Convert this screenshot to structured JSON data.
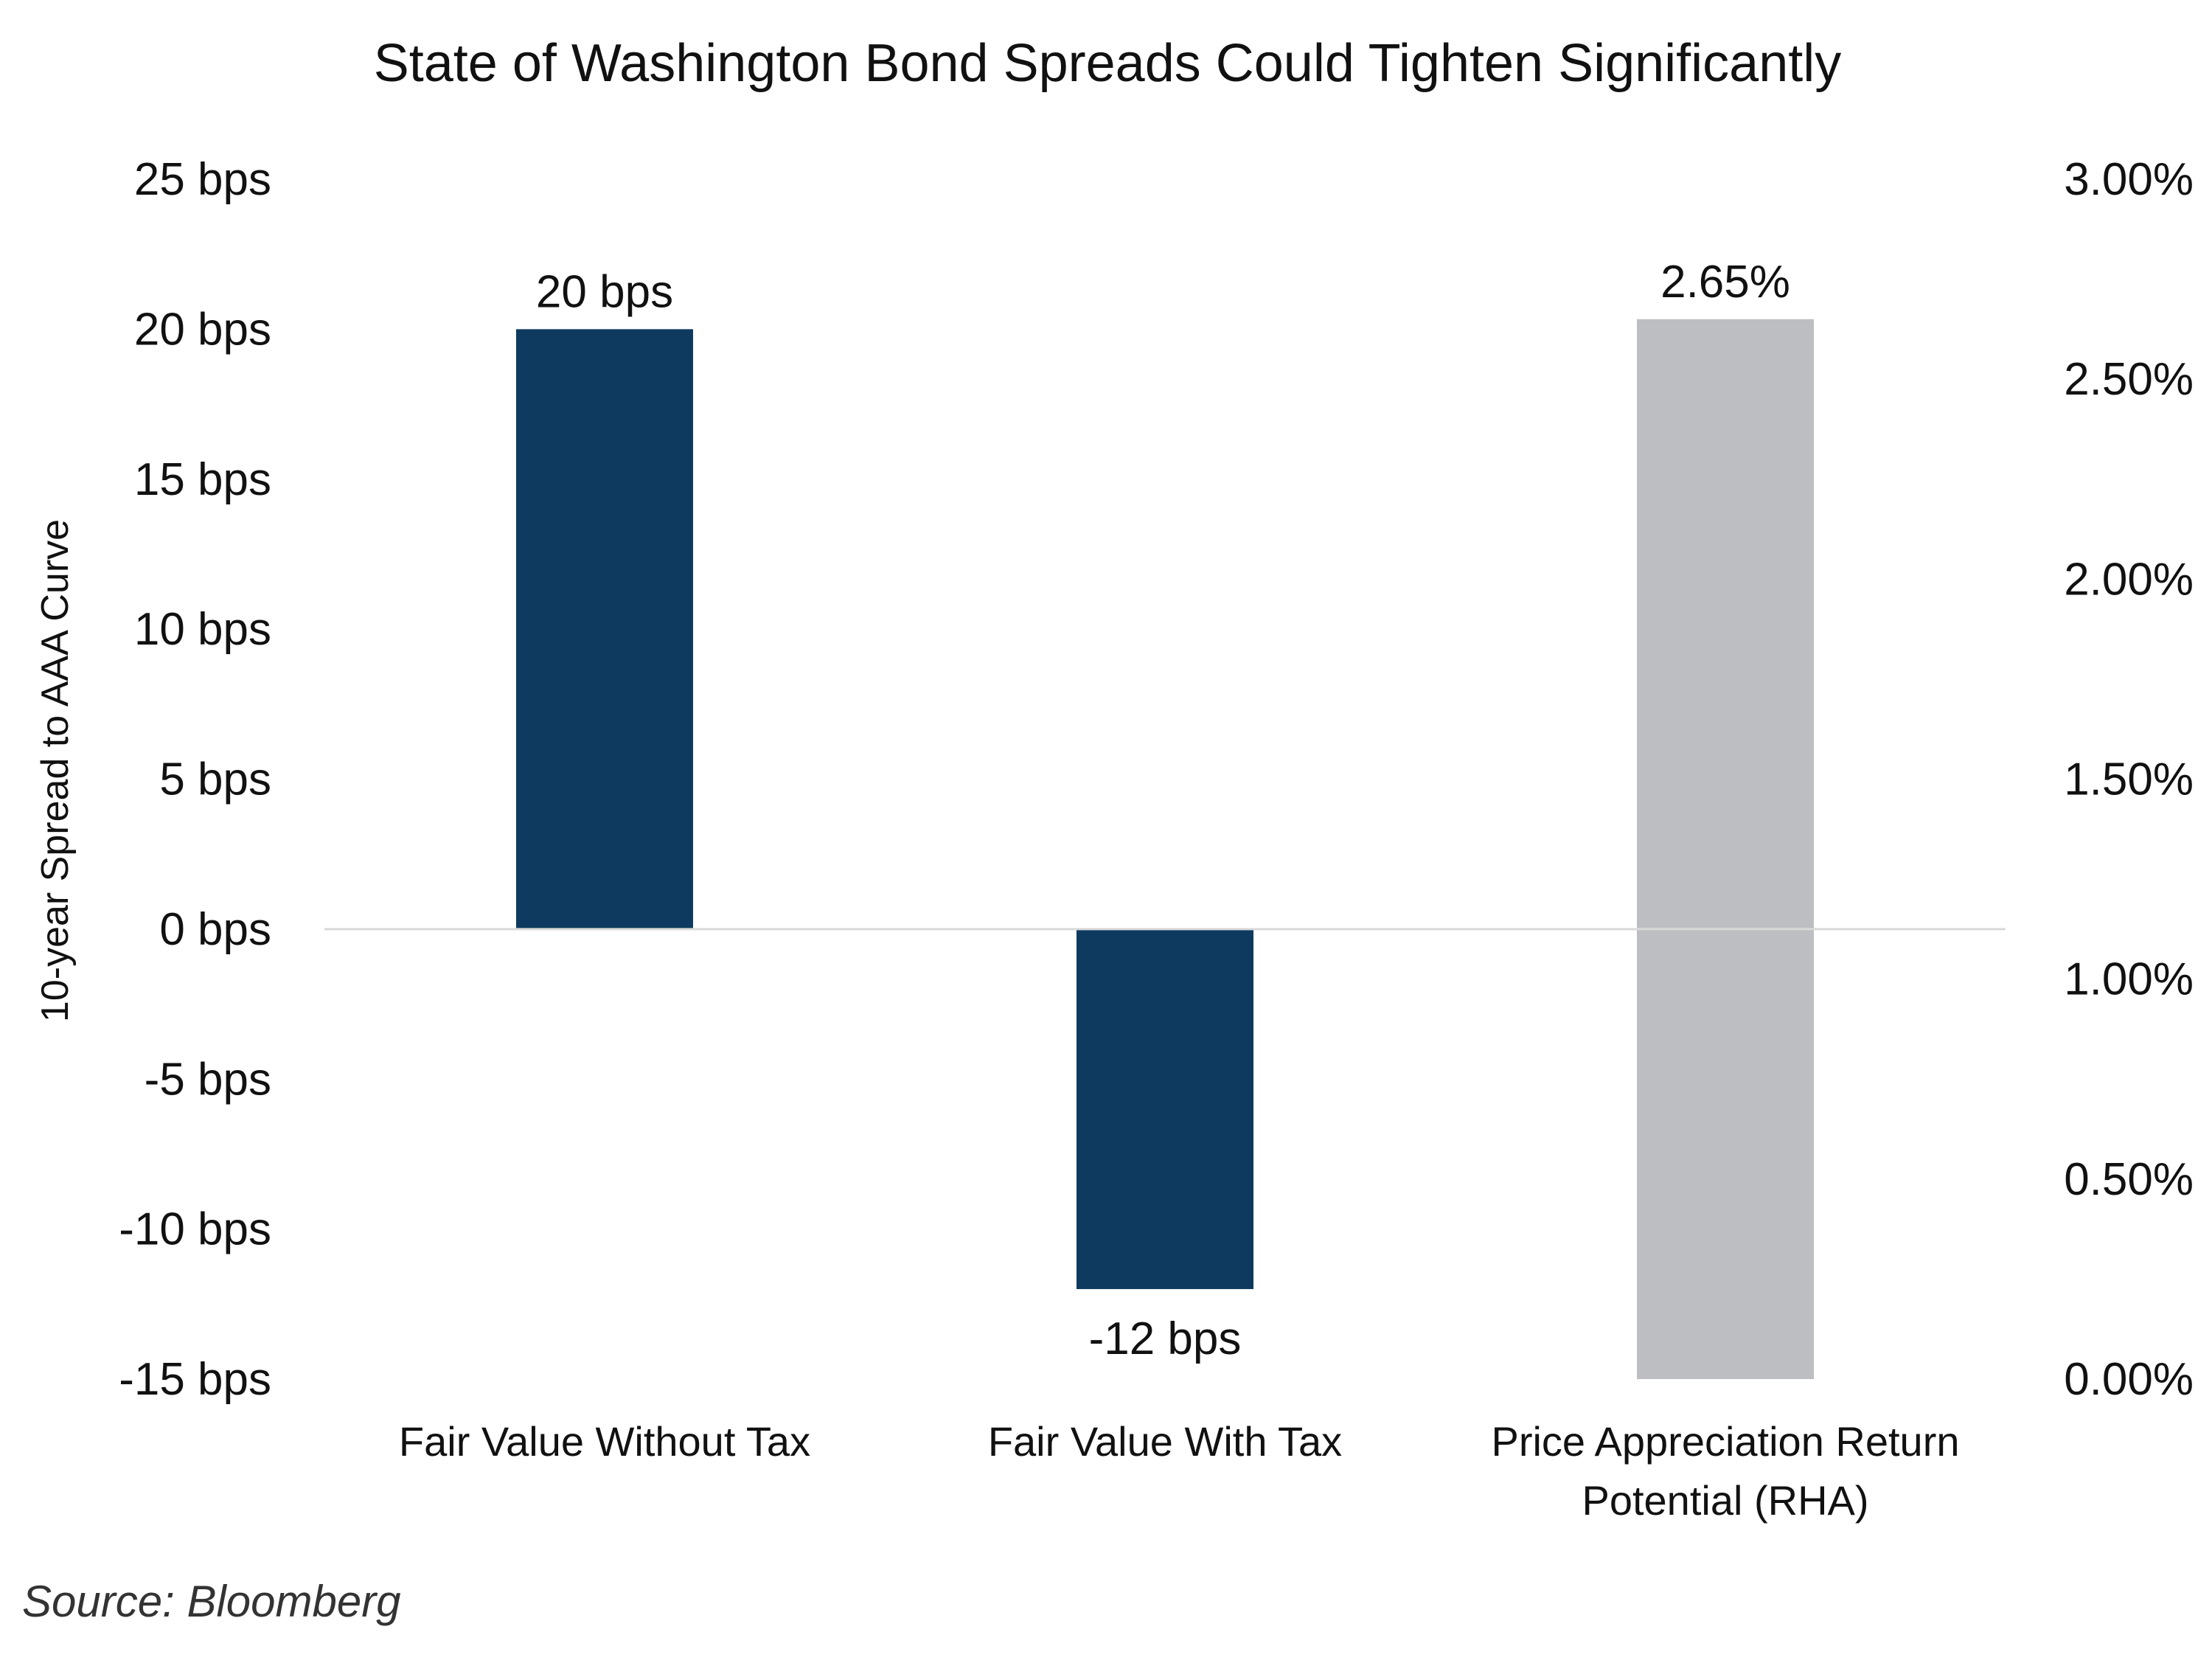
{
  "chart_data": {
    "type": "bar",
    "title": "State of Washington Bond Spreads Could Tighten Significantly",
    "categories": [
      "Fair Value Without Tax",
      "Fair Value With Tax",
      "Price Appreciation Return Potential (RHA)"
    ],
    "category_lines": [
      [
        "Fair Value Without Tax"
      ],
      [
        "Fair Value With Tax"
      ],
      [
        "Price Appreciation Return",
        "Potential (RHA)"
      ]
    ],
    "series": [
      {
        "axis": "left",
        "values": [
          20,
          -12,
          null
        ],
        "labels": [
          "20 bps",
          "-12 bps",
          ""
        ],
        "color": "#0e3a5f"
      },
      {
        "axis": "right",
        "values": [
          null,
          null,
          2.65
        ],
        "labels": [
          "",
          "",
          "2.65%"
        ],
        "color": "#bdbec1"
      }
    ],
    "left_axis": {
      "label": "10-year Spread to AAA Curve",
      "ylim": [
        -15,
        25
      ],
      "ticks": [
        25,
        20,
        15,
        10,
        5,
        0,
        -5,
        -10,
        -15
      ],
      "tick_labels": [
        "25 bps",
        "20 bps",
        "15 bps",
        "10 bps",
        "5 bps",
        "0 bps",
        "-5 bps",
        "-10 bps",
        "-15 bps"
      ]
    },
    "right_axis": {
      "label": "",
      "ylim": [
        0,
        3
      ],
      "ticks": [
        3,
        2.5,
        2,
        1.5,
        1,
        0.5,
        0
      ],
      "tick_labels": [
        "3.00%",
        "2.50%",
        "2.00%",
        "1.50%",
        "1.00%",
        "0.50%",
        "0.00%"
      ]
    },
    "zero_line": true,
    "grid": false,
    "legend": "none",
    "source": "Source: Bloomberg"
  }
}
